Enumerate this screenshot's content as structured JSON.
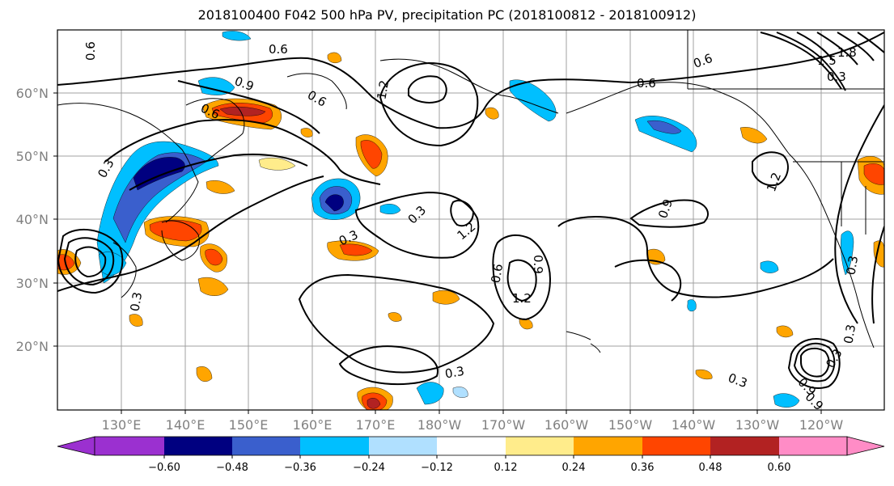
{
  "title": "2018100400 F042 500 hPa PV, precipitation PC (2018100812 - 2018100912)",
  "map": {
    "lat_labels": [
      "60°N",
      "50°N",
      "40°N",
      "30°N",
      "20°N"
    ],
    "lon_labels": [
      "130°E",
      "140°E",
      "150°E",
      "160°E",
      "170°E",
      "180°W",
      "170°W",
      "160°W",
      "150°W",
      "140°W",
      "130°W",
      "120°W"
    ],
    "contour_labels": [
      "0.6",
      "0.6",
      "0.9",
      "0.6",
      "1.2",
      "0.6",
      "0.6",
      "1.8",
      "1.5",
      "0.3",
      "0.3",
      "0.3",
      "0.9",
      "1.2",
      "0.3",
      "1.2",
      "0.6",
      "0.9",
      "1.2",
      "0.3",
      "0.3",
      "0.3",
      "0.3",
      "0.9",
      "0.9",
      "0.3",
      "0.3",
      "0.6"
    ]
  },
  "colorbar": {
    "tick_labels": [
      "−0.60",
      "−0.48",
      "−0.36",
      "−0.24",
      "−0.12",
      "0.12",
      "0.24",
      "0.36",
      "0.48",
      "0.60"
    ],
    "colors": [
      "#9b30d0",
      "#000080",
      "#3a5fcd",
      "#00bfff",
      "#b0e0ff",
      "#ffffff",
      "#ffec8b",
      "#ffa500",
      "#ff4500",
      "#b22222",
      "#ff8cc6"
    ]
  }
}
